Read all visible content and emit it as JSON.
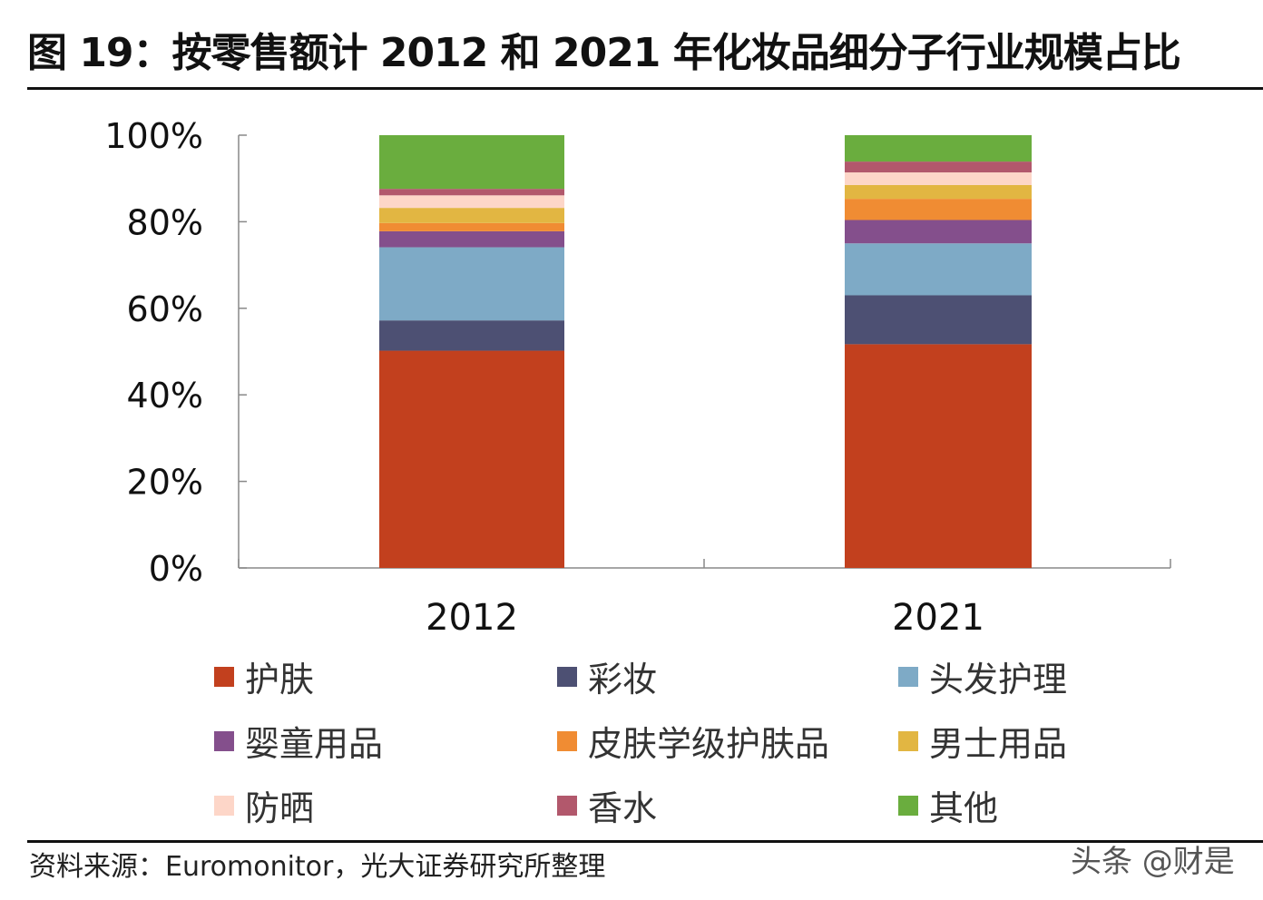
{
  "title": "图 19：按零售额计 2012 和 2021 年化妆品细分子行业规模占比",
  "source": "资料来源：Euromonitor，光大证券研究所整理",
  "watermark": "头条 @财是",
  "chart_data": {
    "type": "bar",
    "stacked": true,
    "title": "",
    "xlabel": "",
    "ylabel": "",
    "categories": [
      "2012",
      "2021"
    ],
    "ylim": [
      0,
      100
    ],
    "yticks": [
      "0%",
      "20%",
      "40%",
      "60%",
      "80%",
      "100%"
    ],
    "legend_position": "bottom",
    "series": [
      {
        "name": "护肤",
        "color": "#c2401e",
        "values": [
          50.2,
          51.7
        ]
      },
      {
        "name": "彩妆",
        "color": "#4d5073",
        "values": [
          7.0,
          11.3
        ]
      },
      {
        "name": "头发护理",
        "color": "#7eaac6",
        "values": [
          16.9,
          12.0
        ]
      },
      {
        "name": "婴童用品",
        "color": "#844f8c",
        "values": [
          3.7,
          5.4
        ]
      },
      {
        "name": "皮肤学级护肤品",
        "color": "#f08c33",
        "values": [
          1.9,
          4.9
        ]
      },
      {
        "name": "男士用品",
        "color": "#e2b642",
        "values": [
          3.5,
          3.2
        ]
      },
      {
        "name": "防晒",
        "color": "#fdd6c8",
        "values": [
          2.9,
          2.9
        ]
      },
      {
        "name": "香水",
        "color": "#b2586c",
        "values": [
          1.5,
          2.5
        ]
      },
      {
        "name": "其他",
        "color": "#6aad3e",
        "values": [
          12.4,
          6.1
        ]
      }
    ]
  }
}
